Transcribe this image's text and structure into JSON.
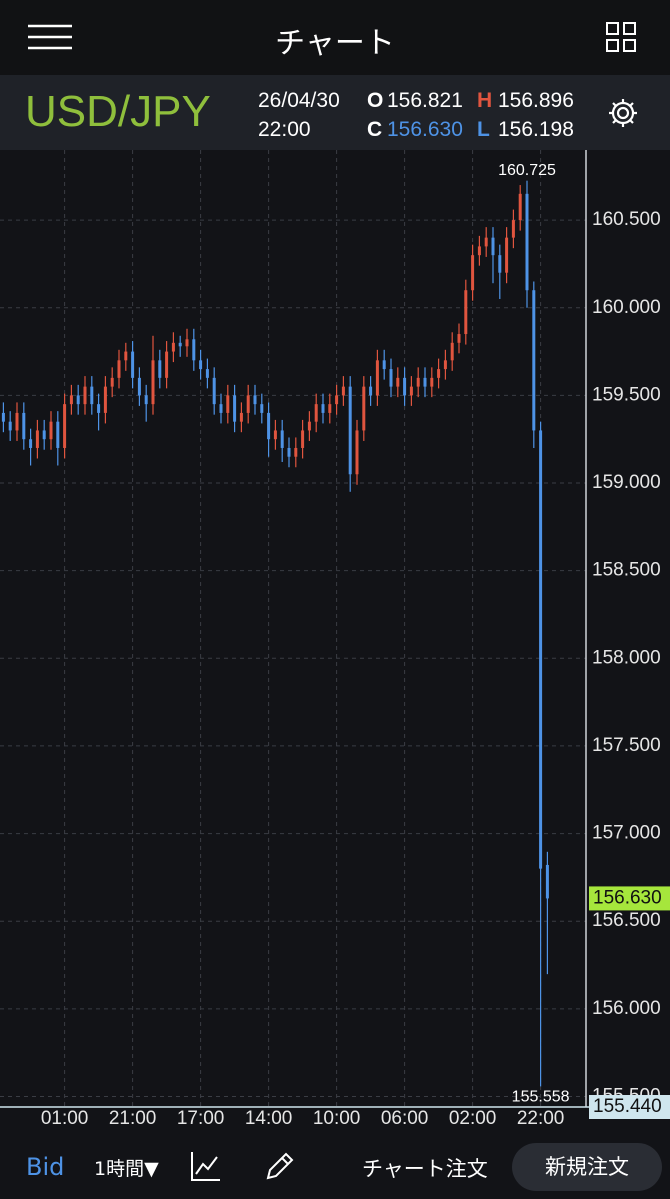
{
  "header": {
    "title": "チャート"
  },
  "quote": {
    "symbol": "USD/JPY",
    "date": "26/04/30",
    "time": "22:00",
    "o_label": "O",
    "open": "156.821",
    "h_label": "H",
    "high": "156.896",
    "c_label": "C",
    "close": "156.630",
    "l_label": "L",
    "low": "156.198"
  },
  "chart_data": {
    "type": "ohlc",
    "categories": [
      null,
      null,
      null,
      null,
      null,
      null,
      null,
      null,
      null,
      "01:00",
      null,
      null,
      null,
      null,
      null,
      null,
      null,
      null,
      null,
      "21:00",
      null,
      null,
      null,
      null,
      null,
      null,
      null,
      null,
      null,
      "17:00",
      null,
      null,
      null,
      null,
      null,
      null,
      null,
      null,
      null,
      "14:00",
      null,
      null,
      null,
      null,
      null,
      null,
      null,
      null,
      null,
      "10:00",
      null,
      null,
      null,
      null,
      null,
      null,
      null,
      null,
      null,
      "06:00",
      null,
      null,
      null,
      null,
      null,
      null,
      null,
      null,
      null,
      "02:00",
      null,
      null,
      null,
      null,
      null,
      null,
      null,
      null,
      null,
      "22:00",
      null
    ],
    "open": [
      159.4,
      159.35,
      159.3,
      159.4,
      159.25,
      159.2,
      159.3,
      159.25,
      159.35,
      159.2,
      159.45,
      159.5,
      159.45,
      159.55,
      159.45,
      159.4,
      159.55,
      159.6,
      159.7,
      159.75,
      159.6,
      159.5,
      159.45,
      159.7,
      159.6,
      159.75,
      159.8,
      159.78,
      159.82,
      159.7,
      159.65,
      159.6,
      159.45,
      159.4,
      159.5,
      159.35,
      159.4,
      159.5,
      159.45,
      159.4,
      159.25,
      159.3,
      159.2,
      159.15,
      159.2,
      159.3,
      159.35,
      159.45,
      159.4,
      159.45,
      159.5,
      159.55,
      159.05,
      159.3,
      159.55,
      159.5,
      159.7,
      159.65,
      159.55,
      159.6,
      159.5,
      159.55,
      159.6,
      159.55,
      159.6,
      159.65,
      159.7,
      159.8,
      159.85,
      160.1,
      160.3,
      160.35,
      160.4,
      160.3,
      160.2,
      160.4,
      160.5,
      160.65,
      160.1,
      159.3,
      156.821
    ],
    "high": [
      159.46,
      159.41,
      159.46,
      159.46,
      159.31,
      159.36,
      159.36,
      159.41,
      159.41,
      159.51,
      159.56,
      159.56,
      159.61,
      159.61,
      159.51,
      159.61,
      159.66,
      159.76,
      159.8,
      159.81,
      159.66,
      159.56,
      159.84,
      159.76,
      159.81,
      159.86,
      159.84,
      159.88,
      159.88,
      159.76,
      159.71,
      159.66,
      159.51,
      159.56,
      159.56,
      159.46,
      159.56,
      159.56,
      159.51,
      159.46,
      159.36,
      159.36,
      159.26,
      159.26,
      159.36,
      159.41,
      159.51,
      159.51,
      159.51,
      159.56,
      159.61,
      159.61,
      159.36,
      159.61,
      159.61,
      159.76,
      159.76,
      159.71,
      159.66,
      159.66,
      159.61,
      159.66,
      159.66,
      159.66,
      159.71,
      159.76,
      159.86,
      159.91,
      160.16,
      160.36,
      160.41,
      160.46,
      160.46,
      160.36,
      160.46,
      160.56,
      160.7,
      160.725,
      160.15,
      159.35,
      156.896
    ],
    "low": [
      159.29,
      159.24,
      159.24,
      159.19,
      159.1,
      159.14,
      159.19,
      159.19,
      159.1,
      159.14,
      159.39,
      159.39,
      159.39,
      159.39,
      159.3,
      159.34,
      159.49,
      159.54,
      159.64,
      159.54,
      159.44,
      159.35,
      159.39,
      159.54,
      159.54,
      159.69,
      159.72,
      159.72,
      159.64,
      159.59,
      159.54,
      159.39,
      159.34,
      159.34,
      159.29,
      159.29,
      159.34,
      159.39,
      159.34,
      159.15,
      159.19,
      159.12,
      159.09,
      159.09,
      159.14,
      159.24,
      159.29,
      159.34,
      159.34,
      159.39,
      159.44,
      158.95,
      158.99,
      159.24,
      159.44,
      159.44,
      159.59,
      159.49,
      159.49,
      159.44,
      159.44,
      159.49,
      159.49,
      159.49,
      159.54,
      159.59,
      159.64,
      159.74,
      159.79,
      160.04,
      160.24,
      160.29,
      160.14,
      160.05,
      160.14,
      160.34,
      160.44,
      160.0,
      159.2,
      155.558,
      156.198
    ],
    "close": [
      159.35,
      159.3,
      159.4,
      159.25,
      159.2,
      159.3,
      159.25,
      159.35,
      159.2,
      159.45,
      159.5,
      159.45,
      159.55,
      159.45,
      159.4,
      159.55,
      159.6,
      159.7,
      159.75,
      159.6,
      159.5,
      159.45,
      159.7,
      159.6,
      159.75,
      159.8,
      159.78,
      159.82,
      159.7,
      159.65,
      159.6,
      159.45,
      159.4,
      159.5,
      159.35,
      159.4,
      159.5,
      159.45,
      159.4,
      159.25,
      159.3,
      159.2,
      159.15,
      159.2,
      159.3,
      159.35,
      159.45,
      159.4,
      159.45,
      159.5,
      159.55,
      159.05,
      159.3,
      159.55,
      159.5,
      159.7,
      159.65,
      159.55,
      159.6,
      159.5,
      159.55,
      159.6,
      159.55,
      159.6,
      159.65,
      159.7,
      159.8,
      159.85,
      160.1,
      160.3,
      160.35,
      160.4,
      160.3,
      160.2,
      160.4,
      160.5,
      160.65,
      160.1,
      159.3,
      156.8,
      156.63
    ],
    "up_color": "#e0553f",
    "down_color": "#4e93e6",
    "ylim": [
      155.44,
      160.9
    ],
    "yticks": [
      {
        "value": 155.5,
        "label": "155.500"
      },
      {
        "value": 156,
        "label": "156.000"
      },
      {
        "value": 156.5,
        "label": "156.500"
      },
      {
        "value": 157,
        "label": "157.000"
      },
      {
        "value": 157.5,
        "label": "157.500"
      },
      {
        "value": 158,
        "label": "158.000"
      },
      {
        "value": 158.5,
        "label": "158.500"
      },
      {
        "value": 159,
        "label": "159.000"
      },
      {
        "value": 159.5,
        "label": "159.500"
      },
      {
        "value": 160,
        "label": "160.000"
      },
      {
        "value": 160.5,
        "label": "160.500"
      }
    ],
    "grid": true,
    "last_price": {
      "value": 156.63,
      "label": "156.630"
    },
    "axis_floor": {
      "value": 155.44,
      "label": "155.440"
    }
  },
  "toolbar": {
    "price_side": "Bid",
    "interval": "1時間▼",
    "chart_order": "チャート注文",
    "new_order": "新規注文"
  }
}
